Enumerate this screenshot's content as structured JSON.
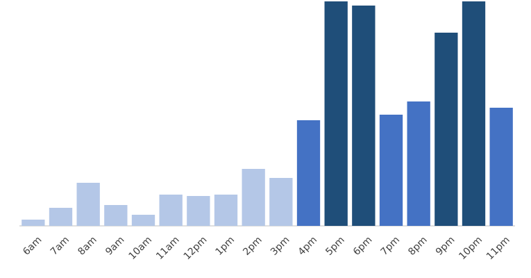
{
  "chart_data": {
    "type": "bar",
    "categories": [
      "6am",
      "7am",
      "8am",
      "9am",
      "10am",
      "11am",
      "12pm",
      "1pm",
      "2pm",
      "3pm",
      "4pm",
      "5pm",
      "6pm",
      "7pm",
      "8pm",
      "9pm",
      "10pm",
      "11pm"
    ],
    "values": [
      9,
      26,
      62,
      30,
      16,
      45,
      43,
      45,
      82,
      69,
      152,
      323,
      317,
      160,
      179,
      278,
      323,
      170
    ],
    "colors": [
      "#b4c7e7",
      "#b4c7e7",
      "#b4c7e7",
      "#b4c7e7",
      "#b4c7e7",
      "#b4c7e7",
      "#b4c7e7",
      "#b4c7e7",
      "#b4c7e7",
      "#b4c7e7",
      "#4472c4",
      "#1f4e79",
      "#1f4e79",
      "#4472c4",
      "#4472c4",
      "#1f4e79",
      "#1f4e79",
      "#4472c4"
    ]
  }
}
